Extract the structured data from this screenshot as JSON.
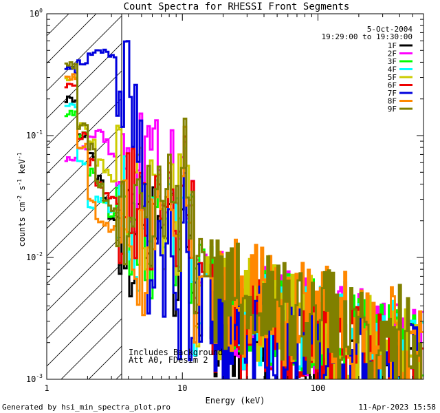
{
  "chart_data": {
    "type": "line",
    "title": "Count Spectra for RHESSI Front Segments",
    "xlabel": "Energy (keV)",
    "ylabel_parts": [
      "counts cm",
      "-2",
      " s",
      "-1",
      " keV",
      "-1"
    ],
    "xscale": "log",
    "yscale": "log",
    "xlim": [
      1,
      600
    ],
    "ylim": [
      0.001,
      1
    ],
    "x_ticks": [
      {
        "value": 1,
        "label": "1"
      },
      {
        "value": 10,
        "label": "10"
      },
      {
        "value": 100,
        "label": "100"
      }
    ],
    "y_ticks": [
      {
        "value": 0.001,
        "base": "10",
        "exp": "-3"
      },
      {
        "value": 0.01,
        "base": "10",
        "exp": "-2"
      },
      {
        "value": 0.1,
        "base": "10",
        "exp": "-1"
      },
      {
        "value": 1,
        "base": "10",
        "exp": "0"
      }
    ],
    "date": "5-Oct-2004",
    "time_range": "19:29:00 to 19:30:00",
    "hatch_region_xmax": 3,
    "annotation_lines": [
      "Includes Background",
      "Att A0, FDesim 2"
    ],
    "series": [
      {
        "name": "1F",
        "color": "#000000",
        "low": [
          0.2,
          0.1,
          0.07,
          0.045,
          0.03,
          0.02
        ],
        "peak": 0.055,
        "tail": 0.003,
        "seed": 1
      },
      {
        "name": "2F",
        "color": "#ff00ff",
        "low": [
          0.065,
          0.08,
          0.1,
          0.11,
          0.09,
          0.07
        ],
        "peak": 0.09,
        "tail": 0.004,
        "seed": 2
      },
      {
        "name": "3F",
        "color": "#00ff00",
        "low": [
          0.15,
          0.1,
          0.05,
          0.04,
          0.03,
          0.022
        ],
        "peak": 0.1,
        "tail": 0.004,
        "seed": 3
      },
      {
        "name": "4F",
        "color": "#00ffff",
        "low": [
          0.18,
          0.06,
          0.025,
          0.03,
          0.028,
          0.025
        ],
        "peak": 0.08,
        "tail": 0.004,
        "seed": 4
      },
      {
        "name": "5F",
        "color": "#cccc00",
        "low": [
          0.3,
          0.12,
          0.09,
          0.06,
          0.05,
          0.045
        ],
        "peak": 0.12,
        "tail": 0.004,
        "seed": 5
      },
      {
        "name": "6F",
        "color": "#ee0000",
        "low": [
          0.25,
          0.1,
          0.06,
          0.04,
          0.035,
          0.03
        ],
        "peak": 0.1,
        "tail": 0.003,
        "seed": 6
      },
      {
        "name": "7F",
        "color": "#0000dd",
        "low": [
          0.35,
          0.4,
          0.45,
          0.5,
          0.48,
          0.45
        ],
        "peak": 0.05,
        "tail": 0.003,
        "seed": 7
      },
      {
        "name": "8F",
        "color": "#ff8800",
        "low": [
          0.3,
          0.08,
          0.03,
          0.02,
          0.018,
          0.017
        ],
        "peak": 0.12,
        "tail": 0.005,
        "seed": 8
      },
      {
        "name": "9F",
        "color": "#808000",
        "low": [
          0.38,
          0.12,
          0.08,
          0.04,
          0.03,
          0.025
        ],
        "peak": 0.14,
        "tail": 0.005,
        "seed": 9
      }
    ]
  },
  "footer": {
    "generated_by": "Generated by hsi_min_spectra_plot.pro",
    "timestamp": "11-Apr-2023 15:58"
  }
}
